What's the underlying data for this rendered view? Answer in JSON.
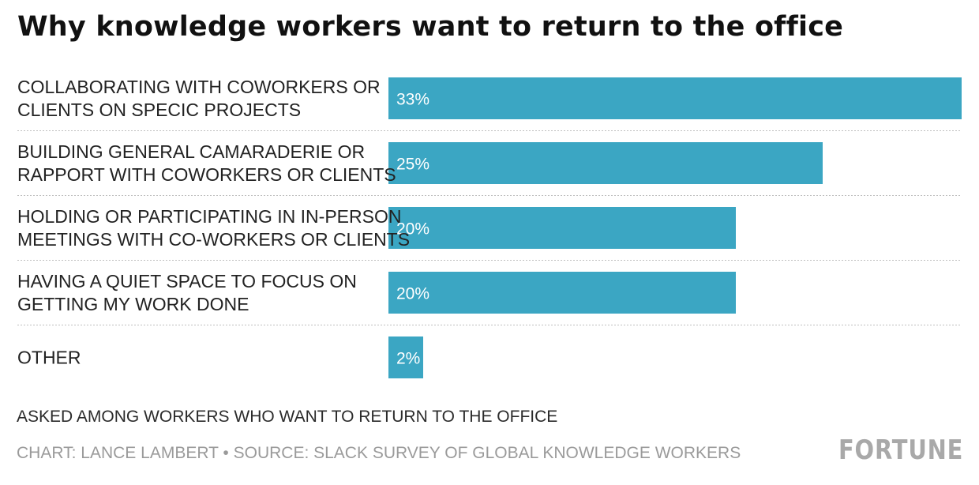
{
  "chart_data": {
    "type": "bar",
    "orientation": "horizontal",
    "title": "Why knowledge workers want to return to the office",
    "categories": [
      [
        "COLLABORATING WITH COWORKERS OR",
        "CLIENTS ON SPECIC PROJECTS"
      ],
      [
        "BUILDING GENERAL CAMARADERIE OR",
        "RAPPORT WITH COWORKERS OR CLIENTS"
      ],
      [
        "HOLDING OR PARTICIPATING IN IN-PERSON",
        "MEETINGS WITH CO-WORKERS OR CLIENTS"
      ],
      [
        "HAVING A QUIET SPACE TO FOCUS ON",
        "GETTING MY WORK DONE"
      ],
      [
        "OTHER"
      ]
    ],
    "values": [
      33,
      25,
      20,
      20,
      2
    ],
    "value_labels": [
      "33%",
      "25%",
      "20%",
      "20%",
      "2%"
    ],
    "unit": "%",
    "xlim": [
      0,
      33
    ],
    "bar_color": "#3ba6c3",
    "grid": false
  },
  "footer": {
    "note": "ASKED AMONG WORKERS WHO WANT TO RETURN TO THE OFFICE",
    "credit": "CHART: LANCE LAMBERT • SOURCE: SLACK SURVEY OF GLOBAL KNOWLEDGE WORKERS",
    "logo": "FORTUNE"
  }
}
